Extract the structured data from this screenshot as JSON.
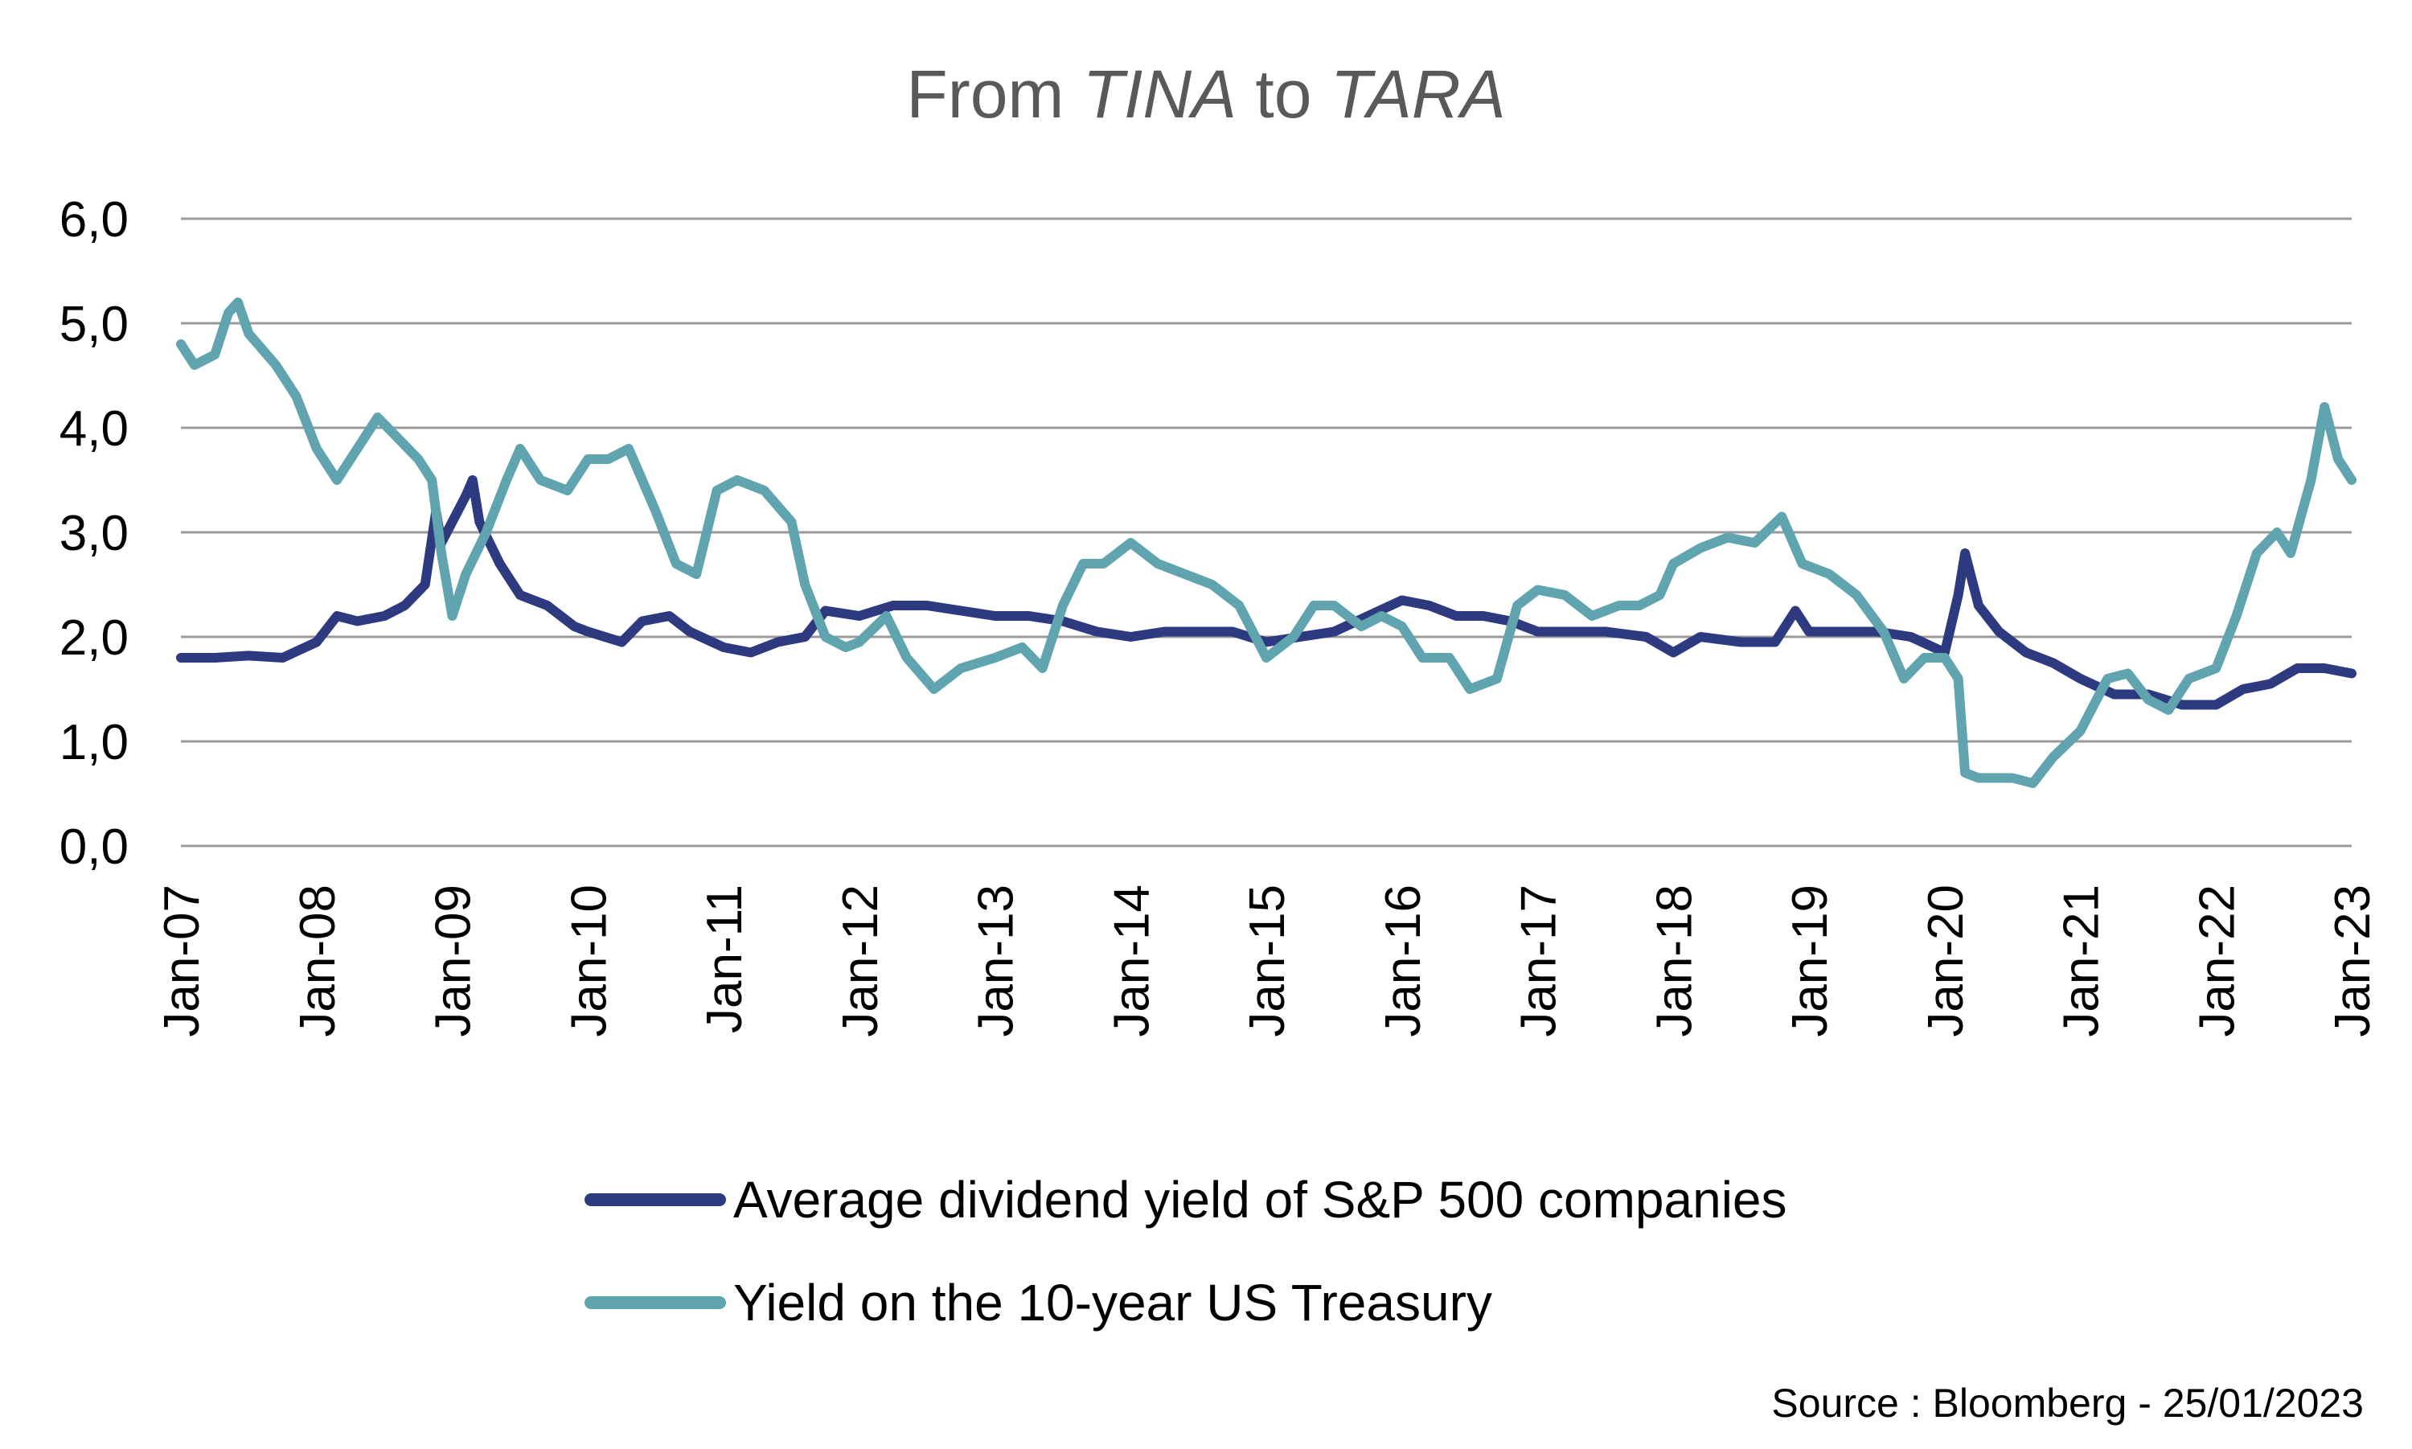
{
  "chart_data": {
    "type": "line",
    "title_parts": [
      {
        "text": "From ",
        "italic": false
      },
      {
        "text": "TINA",
        "italic": true
      },
      {
        "text": " to ",
        "italic": false
      },
      {
        "text": "TARA",
        "italic": true
      }
    ],
    "ylim": [
      0,
      6
    ],
    "yticks": [
      0,
      1,
      2,
      3,
      4,
      5,
      6
    ],
    "ytick_labels": [
      "0,0",
      "1,0",
      "2,0",
      "3,0",
      "4,0",
      "5,0",
      "6,0"
    ],
    "xlim": [
      2007.0,
      2023.0
    ],
    "xticks": [
      2007,
      2008,
      2009,
      2010,
      2011,
      2012,
      2013,
      2014,
      2015,
      2016,
      2017,
      2018,
      2019,
      2020,
      2021,
      2022,
      2023
    ],
    "xtick_labels": [
      "Jan-07",
      "Jan-08",
      "Jan-09",
      "Jan-10",
      "Jan-11",
      "Jan-12",
      "Jan-13",
      "Jan-14",
      "Jan-15",
      "Jan-16",
      "Jan-17",
      "Jan-18",
      "Jan-19",
      "Jan-20",
      "Jan-21",
      "Jan-22",
      "Jan-23"
    ],
    "grid": true,
    "legend_position": "bottom",
    "series": [
      {
        "name": "Average dividend yield of S&P 500 companies",
        "color": "#2E3A7F",
        "points": [
          [
            2007.0,
            1.8
          ],
          [
            2007.25,
            1.8
          ],
          [
            2007.5,
            1.82
          ],
          [
            2007.75,
            1.8
          ],
          [
            2008.0,
            1.95
          ],
          [
            2008.15,
            2.2
          ],
          [
            2008.3,
            2.15
          ],
          [
            2008.5,
            2.2
          ],
          [
            2008.65,
            2.3
          ],
          [
            2008.8,
            2.5
          ],
          [
            2008.88,
            3.2
          ],
          [
            2008.92,
            2.9
          ],
          [
            2009.0,
            3.1
          ],
          [
            2009.1,
            3.35
          ],
          [
            2009.15,
            3.5
          ],
          [
            2009.2,
            3.1
          ],
          [
            2009.35,
            2.7
          ],
          [
            2009.5,
            2.4
          ],
          [
            2009.7,
            2.3
          ],
          [
            2009.9,
            2.1
          ],
          [
            2010.0,
            2.05
          ],
          [
            2010.25,
            1.95
          ],
          [
            2010.4,
            2.15
          ],
          [
            2010.6,
            2.2
          ],
          [
            2010.75,
            2.05
          ],
          [
            2011.0,
            1.9
          ],
          [
            2011.2,
            1.85
          ],
          [
            2011.4,
            1.95
          ],
          [
            2011.6,
            2.0
          ],
          [
            2011.75,
            2.25
          ],
          [
            2012.0,
            2.2
          ],
          [
            2012.25,
            2.3
          ],
          [
            2012.5,
            2.3
          ],
          [
            2012.75,
            2.25
          ],
          [
            2013.0,
            2.2
          ],
          [
            2013.25,
            2.2
          ],
          [
            2013.5,
            2.15
          ],
          [
            2013.75,
            2.05
          ],
          [
            2014.0,
            2.0
          ],
          [
            2014.25,
            2.05
          ],
          [
            2014.5,
            2.05
          ],
          [
            2014.75,
            2.05
          ],
          [
            2015.0,
            1.95
          ],
          [
            2015.25,
            2.0
          ],
          [
            2015.5,
            2.05
          ],
          [
            2015.75,
            2.2
          ],
          [
            2016.0,
            2.35
          ],
          [
            2016.2,
            2.3
          ],
          [
            2016.4,
            2.2
          ],
          [
            2016.6,
            2.2
          ],
          [
            2016.8,
            2.15
          ],
          [
            2017.0,
            2.05
          ],
          [
            2017.5,
            2.05
          ],
          [
            2017.8,
            2.0
          ],
          [
            2018.0,
            1.85
          ],
          [
            2018.2,
            2.0
          ],
          [
            2018.5,
            1.95
          ],
          [
            2018.75,
            1.95
          ],
          [
            2018.9,
            2.25
          ],
          [
            2019.0,
            2.05
          ],
          [
            2019.25,
            2.05
          ],
          [
            2019.5,
            2.05
          ],
          [
            2019.75,
            2.0
          ],
          [
            2020.0,
            1.85
          ],
          [
            2020.1,
            2.4
          ],
          [
            2020.15,
            2.8
          ],
          [
            2020.25,
            2.3
          ],
          [
            2020.4,
            2.05
          ],
          [
            2020.6,
            1.85
          ],
          [
            2020.8,
            1.75
          ],
          [
            2021.0,
            1.6
          ],
          [
            2021.25,
            1.45
          ],
          [
            2021.5,
            1.45
          ],
          [
            2021.75,
            1.35
          ],
          [
            2022.0,
            1.35
          ],
          [
            2022.2,
            1.5
          ],
          [
            2022.4,
            1.55
          ],
          [
            2022.6,
            1.7
          ],
          [
            2022.8,
            1.7
          ],
          [
            2023.0,
            1.65
          ]
        ]
      },
      {
        "name": "Yield on the 10-year US Treasury",
        "color": "#5FA4AE",
        "points": [
          [
            2007.0,
            4.8
          ],
          [
            2007.1,
            4.6
          ],
          [
            2007.25,
            4.7
          ],
          [
            2007.35,
            5.1
          ],
          [
            2007.42,
            5.2
          ],
          [
            2007.5,
            4.9
          ],
          [
            2007.7,
            4.6
          ],
          [
            2007.85,
            4.3
          ],
          [
            2008.0,
            3.8
          ],
          [
            2008.15,
            3.5
          ],
          [
            2008.3,
            3.8
          ],
          [
            2008.45,
            4.1
          ],
          [
            2008.6,
            3.9
          ],
          [
            2008.75,
            3.7
          ],
          [
            2008.85,
            3.5
          ],
          [
            2008.92,
            2.8
          ],
          [
            2009.0,
            2.2
          ],
          [
            2009.1,
            2.6
          ],
          [
            2009.25,
            3.0
          ],
          [
            2009.4,
            3.5
          ],
          [
            2009.5,
            3.8
          ],
          [
            2009.65,
            3.5
          ],
          [
            2009.85,
            3.4
          ],
          [
            2010.0,
            3.7
          ],
          [
            2010.15,
            3.7
          ],
          [
            2010.3,
            3.8
          ],
          [
            2010.5,
            3.2
          ],
          [
            2010.65,
            2.7
          ],
          [
            2010.8,
            2.6
          ],
          [
            2010.95,
            3.4
          ],
          [
            2011.1,
            3.5
          ],
          [
            2011.3,
            3.4
          ],
          [
            2011.5,
            3.1
          ],
          [
            2011.6,
            2.5
          ],
          [
            2011.75,
            2.0
          ],
          [
            2011.9,
            1.9
          ],
          [
            2012.0,
            1.95
          ],
          [
            2012.2,
            2.2
          ],
          [
            2012.35,
            1.8
          ],
          [
            2012.55,
            1.5
          ],
          [
            2012.75,
            1.7
          ],
          [
            2013.0,
            1.8
          ],
          [
            2013.2,
            1.9
          ],
          [
            2013.35,
            1.7
          ],
          [
            2013.5,
            2.3
          ],
          [
            2013.65,
            2.7
          ],
          [
            2013.8,
            2.7
          ],
          [
            2014.0,
            2.9
          ],
          [
            2014.2,
            2.7
          ],
          [
            2014.4,
            2.6
          ],
          [
            2014.6,
            2.5
          ],
          [
            2014.8,
            2.3
          ],
          [
            2015.0,
            1.8
          ],
          [
            2015.2,
            2.0
          ],
          [
            2015.35,
            2.3
          ],
          [
            2015.5,
            2.3
          ],
          [
            2015.7,
            2.1
          ],
          [
            2015.85,
            2.2
          ],
          [
            2016.0,
            2.1
          ],
          [
            2016.15,
            1.8
          ],
          [
            2016.35,
            1.8
          ],
          [
            2016.5,
            1.5
          ],
          [
            2016.7,
            1.6
          ],
          [
            2016.85,
            2.3
          ],
          [
            2017.0,
            2.45
          ],
          [
            2017.2,
            2.4
          ],
          [
            2017.4,
            2.2
          ],
          [
            2017.6,
            2.3
          ],
          [
            2017.75,
            2.3
          ],
          [
            2017.9,
            2.4
          ],
          [
            2018.0,
            2.7
          ],
          [
            2018.2,
            2.85
          ],
          [
            2018.4,
            2.95
          ],
          [
            2018.6,
            2.9
          ],
          [
            2018.8,
            3.15
          ],
          [
            2018.95,
            2.7
          ],
          [
            2019.15,
            2.6
          ],
          [
            2019.35,
            2.4
          ],
          [
            2019.55,
            2.05
          ],
          [
            2019.7,
            1.6
          ],
          [
            2019.85,
            1.8
          ],
          [
            2020.0,
            1.8
          ],
          [
            2020.1,
            1.6
          ],
          [
            2020.15,
            0.7
          ],
          [
            2020.25,
            0.65
          ],
          [
            2020.5,
            0.65
          ],
          [
            2020.65,
            0.6
          ],
          [
            2020.8,
            0.85
          ],
          [
            2021.0,
            1.1
          ],
          [
            2021.2,
            1.6
          ],
          [
            2021.35,
            1.65
          ],
          [
            2021.5,
            1.4
          ],
          [
            2021.65,
            1.3
          ],
          [
            2021.8,
            1.6
          ],
          [
            2022.0,
            1.7
          ],
          [
            2022.15,
            2.2
          ],
          [
            2022.3,
            2.8
          ],
          [
            2022.45,
            3.0
          ],
          [
            2022.55,
            2.8
          ],
          [
            2022.7,
            3.5
          ],
          [
            2022.8,
            4.2
          ],
          [
            2022.9,
            3.7
          ],
          [
            2023.0,
            3.5
          ]
        ]
      }
    ],
    "source": "Source : Bloomberg - 25/01/2023"
  }
}
